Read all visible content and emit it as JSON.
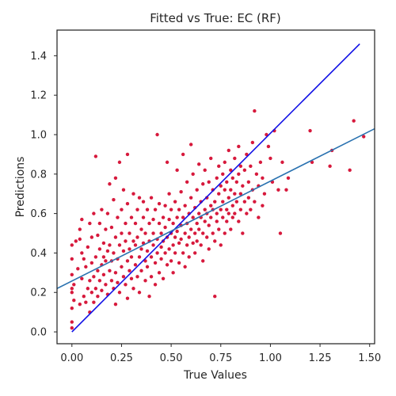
{
  "chart_data": {
    "type": "scatter",
    "title": "Fitted vs True: EC (RF)",
    "xlabel": "True Values",
    "ylabel": "Predictions",
    "xlim": [
      -0.075,
      1.525
    ],
    "ylim": [
      -0.06,
      1.53
    ],
    "xticks": [
      "0.00",
      "0.25",
      "0.50",
      "0.75",
      "1.00",
      "1.25",
      "1.50"
    ],
    "yticks": [
      "0.0",
      "0.2",
      "0.4",
      "0.6",
      "0.8",
      "1.0",
      "1.2",
      "1.4"
    ],
    "grid": false,
    "legend": "none",
    "points_color": "#d7193c",
    "points": [
      [
        0.0,
        0.02
      ],
      [
        0.0,
        0.05
      ],
      [
        0.0,
        0.12
      ],
      [
        0.0,
        0.2
      ],
      [
        0.0,
        0.22
      ],
      [
        0.0,
        0.29
      ],
      [
        0.0,
        0.37
      ],
      [
        0.0,
        0.44
      ],
      [
        0.01,
        0.16
      ],
      [
        0.01,
        0.24
      ],
      [
        0.02,
        0.46
      ],
      [
        0.03,
        0.32
      ],
      [
        0.04,
        0.14
      ],
      [
        0.04,
        0.47
      ],
      [
        0.04,
        0.52
      ],
      [
        0.05,
        0.57
      ],
      [
        0.05,
        0.4
      ],
      [
        0.05,
        0.27
      ],
      [
        0.06,
        0.18
      ],
      [
        0.06,
        0.37
      ],
      [
        0.07,
        0.15
      ],
      [
        0.07,
        0.33
      ],
      [
        0.08,
        0.22
      ],
      [
        0.08,
        0.43
      ],
      [
        0.09,
        0.26
      ],
      [
        0.09,
        0.55
      ],
      [
        0.09,
        0.1
      ],
      [
        0.1,
        0.35
      ],
      [
        0.1,
        0.48
      ],
      [
        0.1,
        0.2
      ],
      [
        0.11,
        0.28
      ],
      [
        0.11,
        0.6
      ],
      [
        0.11,
        0.15
      ],
      [
        0.12,
        0.38
      ],
      [
        0.12,
        0.22
      ],
      [
        0.12,
        0.89
      ],
      [
        0.13,
        0.49
      ],
      [
        0.13,
        0.31
      ],
      [
        0.13,
        0.18
      ],
      [
        0.14,
        0.42
      ],
      [
        0.14,
        0.26
      ],
      [
        0.14,
        0.55
      ],
      [
        0.15,
        0.34
      ],
      [
        0.15,
        0.21
      ],
      [
        0.15,
        0.62
      ],
      [
        0.16,
        0.45
      ],
      [
        0.16,
        0.29
      ],
      [
        0.16,
        0.38
      ],
      [
        0.17,
        0.52
      ],
      [
        0.17,
        0.24
      ],
      [
        0.17,
        0.36
      ],
      [
        0.18,
        0.41
      ],
      [
        0.18,
        0.19
      ],
      [
        0.18,
        0.6
      ],
      [
        0.19,
        0.31
      ],
      [
        0.19,
        0.75
      ],
      [
        0.19,
        0.44
      ],
      [
        0.2,
        0.26
      ],
      [
        0.2,
        0.53
      ],
      [
        0.2,
        0.36
      ],
      [
        0.21,
        0.67
      ],
      [
        0.21,
        0.22
      ],
      [
        0.21,
        0.4
      ],
      [
        0.22,
        0.48
      ],
      [
        0.22,
        0.3
      ],
      [
        0.22,
        0.78
      ],
      [
        0.22,
        0.14
      ],
      [
        0.23,
        0.58
      ],
      [
        0.23,
        0.37
      ],
      [
        0.23,
        0.25
      ],
      [
        0.24,
        0.44
      ],
      [
        0.24,
        0.86
      ],
      [
        0.24,
        0.2
      ],
      [
        0.25,
        0.5
      ],
      [
        0.25,
        0.33
      ],
      [
        0.25,
        0.62
      ],
      [
        0.26,
        0.41
      ],
      [
        0.26,
        0.28
      ],
      [
        0.26,
        0.72
      ],
      [
        0.27,
        0.46
      ],
      [
        0.27,
        0.24
      ],
      [
        0.27,
        0.55
      ],
      [
        0.28,
        0.36
      ],
      [
        0.28,
        0.9
      ],
      [
        0.28,
        0.17
      ],
      [
        0.28,
        0.65
      ],
      [
        0.29,
        0.42
      ],
      [
        0.29,
        0.31
      ],
      [
        0.29,
        0.5
      ],
      [
        0.3,
        0.58
      ],
      [
        0.3,
        0.27
      ],
      [
        0.3,
        0.38
      ],
      [
        0.31,
        0.46
      ],
      [
        0.31,
        0.7
      ],
      [
        0.31,
        0.22
      ],
      [
        0.32,
        0.55
      ],
      [
        0.32,
        0.34
      ],
      [
        0.32,
        0.44
      ],
      [
        0.33,
        0.62
      ],
      [
        0.33,
        0.28
      ],
      [
        0.33,
        0.48
      ],
      [
        0.34,
        0.38
      ],
      [
        0.34,
        0.68
      ],
      [
        0.34,
        0.2
      ],
      [
        0.35,
        0.52
      ],
      [
        0.35,
        0.42
      ],
      [
        0.35,
        0.31
      ],
      [
        0.36,
        0.58
      ],
      [
        0.36,
        0.45
      ],
      [
        0.36,
        0.66
      ],
      [
        0.37,
        0.36
      ],
      [
        0.37,
        0.26
      ],
      [
        0.37,
        0.5
      ],
      [
        0.38,
        0.41
      ],
      [
        0.38,
        0.62
      ],
      [
        0.38,
        0.33
      ],
      [
        0.39,
        0.55
      ],
      [
        0.39,
        0.46
      ],
      [
        0.39,
        0.18
      ],
      [
        0.4,
        0.38
      ],
      [
        0.4,
        0.68
      ],
      [
        0.4,
        0.28
      ],
      [
        0.41,
        0.5
      ],
      [
        0.41,
        0.44
      ],
      [
        0.41,
        0.57
      ],
      [
        0.42,
        0.35
      ],
      [
        0.42,
        0.62
      ],
      [
        0.42,
        0.24
      ],
      [
        0.43,
        0.47
      ],
      [
        0.43,
        0.4
      ],
      [
        0.43,
        1.0
      ],
      [
        0.44,
        0.55
      ],
      [
        0.44,
        0.3
      ],
      [
        0.44,
        0.65
      ],
      [
        0.45,
        0.43
      ],
      [
        0.45,
        0.5
      ],
      [
        0.45,
        0.37
      ],
      [
        0.46,
        0.58
      ],
      [
        0.46,
        0.27
      ],
      [
        0.46,
        0.46
      ],
      [
        0.47,
        0.64
      ],
      [
        0.47,
        0.4
      ],
      [
        0.47,
        0.53
      ],
      [
        0.48,
        0.34
      ],
      [
        0.48,
        0.86
      ],
      [
        0.48,
        0.48
      ],
      [
        0.49,
        0.57
      ],
      [
        0.49,
        0.42
      ],
      [
        0.49,
        0.7
      ],
      [
        0.5,
        0.5
      ],
      [
        0.5,
        0.36
      ],
      [
        0.5,
        0.62
      ],
      [
        0.51,
        0.44
      ],
      [
        0.51,
        0.55
      ],
      [
        0.51,
        0.3
      ],
      [
        0.52,
        0.48
      ],
      [
        0.52,
        0.66
      ],
      [
        0.52,
        0.4
      ],
      [
        0.53,
        0.58
      ],
      [
        0.53,
        0.51
      ],
      [
        0.53,
        0.82
      ],
      [
        0.54,
        0.45
      ],
      [
        0.54,
        0.35
      ],
      [
        0.54,
        0.62
      ],
      [
        0.55,
        0.54
      ],
      [
        0.55,
        0.47
      ],
      [
        0.55,
        0.71
      ],
      [
        0.56,
        0.4
      ],
      [
        0.56,
        0.58
      ],
      [
        0.56,
        0.9
      ],
      [
        0.57,
        0.5
      ],
      [
        0.57,
        0.64
      ],
      [
        0.57,
        0.33
      ],
      [
        0.58,
        0.55
      ],
      [
        0.58,
        0.44
      ],
      [
        0.58,
        0.76
      ],
      [
        0.59,
        0.6
      ],
      [
        0.59,
        0.48
      ],
      [
        0.59,
        0.38
      ],
      [
        0.6,
        0.52
      ],
      [
        0.6,
        0.68
      ],
      [
        0.6,
        0.95
      ],
      [
        0.61,
        0.45
      ],
      [
        0.61,
        0.58
      ],
      [
        0.61,
        0.8
      ],
      [
        0.62,
        0.5
      ],
      [
        0.62,
        0.63
      ],
      [
        0.62,
        0.4
      ],
      [
        0.63,
        0.72
      ],
      [
        0.63,
        0.55
      ],
      [
        0.63,
        0.46
      ],
      [
        0.64,
        0.6
      ],
      [
        0.64,
        0.85
      ],
      [
        0.64,
        0.52
      ],
      [
        0.65,
        0.66
      ],
      [
        0.65,
        0.44
      ],
      [
        0.65,
        0.58
      ],
      [
        0.66,
        0.75
      ],
      [
        0.66,
        0.5
      ],
      [
        0.66,
        0.36
      ],
      [
        0.67,
        0.62
      ],
      [
        0.67,
        0.56
      ],
      [
        0.67,
        0.82
      ],
      [
        0.68,
        0.48
      ],
      [
        0.68,
        0.68
      ],
      [
        0.68,
        0.6
      ],
      [
        0.69,
        0.54
      ],
      [
        0.69,
        0.76
      ],
      [
        0.69,
        0.42
      ],
      [
        0.7,
        0.64
      ],
      [
        0.7,
        0.58
      ],
      [
        0.7,
        0.88
      ],
      [
        0.71,
        0.5
      ],
      [
        0.71,
        0.72
      ],
      [
        0.71,
        0.62
      ],
      [
        0.72,
        0.46
      ],
      [
        0.72,
        0.66
      ],
      [
        0.72,
        0.18
      ],
      [
        0.73,
        0.56
      ],
      [
        0.73,
        0.78
      ],
      [
        0.73,
        0.6
      ],
      [
        0.74,
        0.7
      ],
      [
        0.74,
        0.52
      ],
      [
        0.74,
        0.84
      ],
      [
        0.75,
        0.62
      ],
      [
        0.75,
        0.74
      ],
      [
        0.75,
        0.44
      ],
      [
        0.76,
        0.58
      ],
      [
        0.76,
        0.8
      ],
      [
        0.76,
        0.66
      ],
      [
        0.77,
        0.5
      ],
      [
        0.77,
        0.72
      ],
      [
        0.77,
        0.86
      ],
      [
        0.78,
        0.62
      ],
      [
        0.78,
        0.56
      ],
      [
        0.78,
        0.76
      ],
      [
        0.79,
        0.68
      ],
      [
        0.79,
        0.6
      ],
      [
        0.79,
        0.92
      ],
      [
        0.8,
        0.72
      ],
      [
        0.8,
        0.52
      ],
      [
        0.8,
        0.82
      ],
      [
        0.81,
        0.64
      ],
      [
        0.81,
        0.78
      ],
      [
        0.81,
        0.58
      ],
      [
        0.82,
        0.7
      ],
      [
        0.82,
        0.88
      ],
      [
        0.82,
        0.6
      ],
      [
        0.83,
        0.76
      ],
      [
        0.83,
        0.66
      ],
      [
        0.84,
        0.56
      ],
      [
        0.84,
        0.8
      ],
      [
        0.84,
        0.94
      ],
      [
        0.85,
        0.7
      ],
      [
        0.85,
        0.62
      ],
      [
        0.85,
        0.84
      ],
      [
        0.86,
        0.74
      ],
      [
        0.86,
        0.5
      ],
      [
        0.87,
        0.66
      ],
      [
        0.87,
        0.82
      ],
      [
        0.88,
        0.6
      ],
      [
        0.88,
        0.9
      ],
      [
        0.89,
        0.76
      ],
      [
        0.89,
        0.68
      ],
      [
        0.9,
        0.84
      ],
      [
        0.9,
        0.62
      ],
      [
        0.91,
        0.72
      ],
      [
        0.91,
        0.96
      ],
      [
        0.92,
        1.12
      ],
      [
        0.92,
        0.66
      ],
      [
        0.93,
        0.8
      ],
      [
        0.94,
        0.58
      ],
      [
        0.94,
        0.74
      ],
      [
        0.95,
        0.86
      ],
      [
        0.96,
        0.64
      ],
      [
        0.96,
        0.78
      ],
      [
        0.97,
        0.7
      ],
      [
        0.98,
        1.0
      ],
      [
        0.99,
        0.94
      ],
      [
        1.0,
        0.88
      ],
      [
        1.01,
        0.76
      ],
      [
        1.02,
        1.02
      ],
      [
        1.04,
        0.72
      ],
      [
        1.05,
        0.5
      ],
      [
        1.06,
        0.86
      ],
      [
        1.08,
        0.72
      ],
      [
        1.09,
        0.78
      ],
      [
        1.2,
        1.02
      ],
      [
        1.21,
        0.86
      ],
      [
        1.3,
        0.84
      ],
      [
        1.31,
        0.92
      ],
      [
        1.4,
        0.82
      ],
      [
        1.42,
        1.07
      ],
      [
        1.47,
        0.99
      ]
    ],
    "lines": [
      {
        "name": "",
        "color": "#1010e6",
        "x": [
          0.0,
          1.45
        ],
        "y": [
          0.0,
          1.46
        ]
      },
      {
        "name": "",
        "color": "#2a72b0",
        "x": [
          -0.075,
          1.525
        ],
        "y": [
          0.22,
          1.03
        ]
      }
    ]
  }
}
